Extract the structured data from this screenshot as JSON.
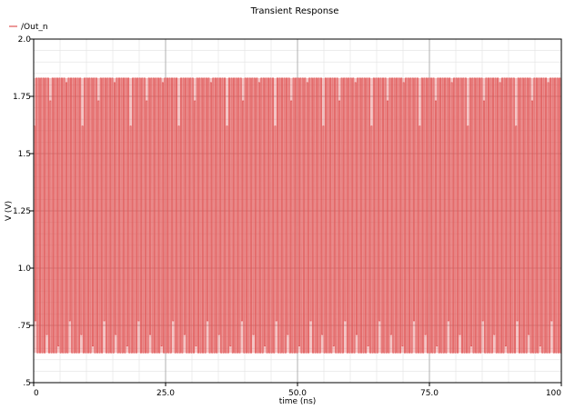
{
  "chart_data": {
    "type": "line",
    "title": "Transient Response",
    "xlabel": "time (ns)",
    "ylabel": "V (V)",
    "xlim": [
      0,
      100
    ],
    "ylim": [
      0.5,
      2.0
    ],
    "x_ticks": [
      0,
      25,
      50,
      75,
      100
    ],
    "x_tick_labels": [
      "0",
      "25.0",
      "50.0",
      "75.0",
      "100"
    ],
    "y_ticks": [
      0.5,
      0.75,
      1.0,
      1.25,
      1.5,
      1.75,
      2.0
    ],
    "y_tick_labels": [
      ".5",
      ".75",
      "1.0",
      "1.25",
      "1.5",
      "1.75",
      "2.0"
    ],
    "grid": true,
    "minor_grid": true,
    "legend": "top-left",
    "colors": {
      "series": "#e05555",
      "grid_major": "#a0a0a0",
      "grid_minor": "#e2e2e2",
      "axis": "#000000"
    },
    "series": [
      {
        "name": "/Out_n",
        "color": "#e05555",
        "waveform": "periodic",
        "cycles_per_ns": 2.3,
        "max_v": 1.83,
        "min_v": 0.63,
        "peak_dips_v": [
          1.62,
          1.73,
          1.81
        ],
        "trough_bumps_v": [
          0.77,
          0.66,
          0.71
        ],
        "envelope_period_ns": 3.0
      }
    ]
  }
}
